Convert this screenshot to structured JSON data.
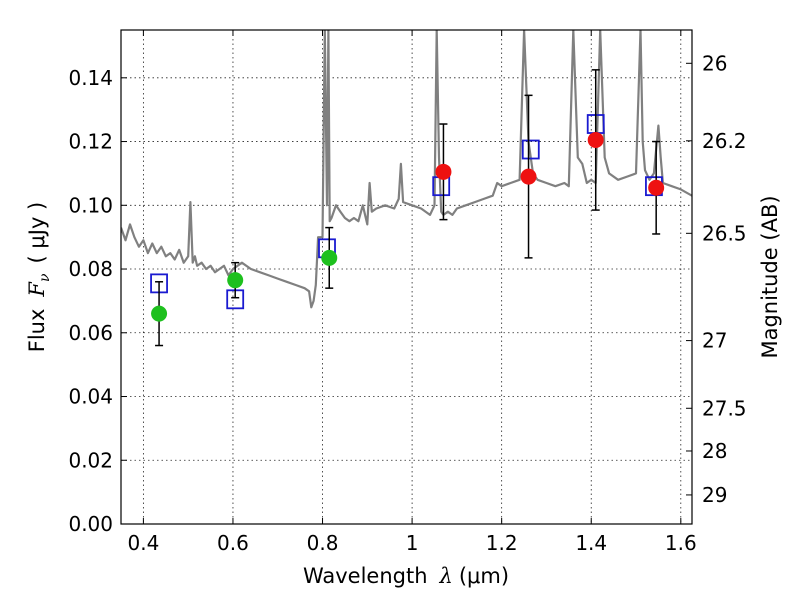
{
  "chart_data": {
    "type": "scatter",
    "xlabel": "Wavelength",
    "xlabel_symbol": "λ",
    "xlabel_unit": "(μm)",
    "ylabel": "Flux",
    "ylabel_symbol": "F",
    "ylabel_subscript": "ν",
    "ylabel_unit": "( μJy )",
    "y2label": "Magnitude (AB)",
    "xlim": [
      0.35,
      1.625
    ],
    "ylim": [
      0.0,
      0.155
    ],
    "grid": true,
    "x_ticks": [
      {
        "value": 0.4,
        "label": "0.4"
      },
      {
        "value": 0.6,
        "label": "0.6"
      },
      {
        "value": 0.8,
        "label": "0.8"
      },
      {
        "value": 1.0,
        "label": "1"
      },
      {
        "value": 1.2,
        "label": "1.2"
      },
      {
        "value": 1.4,
        "label": "1.4"
      },
      {
        "value": 1.6,
        "label": "1.6"
      }
    ],
    "y_ticks": [
      {
        "value": 0.0,
        "label": "0.00"
      },
      {
        "value": 0.02,
        "label": "0.02"
      },
      {
        "value": 0.04,
        "label": "0.04"
      },
      {
        "value": 0.06,
        "label": "0.06"
      },
      {
        "value": 0.08,
        "label": "0.08"
      },
      {
        "value": 0.1,
        "label": "0.10"
      },
      {
        "value": 0.12,
        "label": "0.12"
      },
      {
        "value": 0.14,
        "label": "0.14"
      }
    ],
    "y2_ticks": [
      {
        "value": 26,
        "label": "26"
      },
      {
        "value": 26.2,
        "label": "26.2"
      },
      {
        "value": 26.5,
        "label": "26.5"
      },
      {
        "value": 27,
        "label": "27"
      },
      {
        "value": 27.5,
        "label": "27.5"
      },
      {
        "value": 28,
        "label": "28"
      },
      {
        "value": 29,
        "label": "29"
      }
    ],
    "series": [
      {
        "kind": "line",
        "color": "#808080",
        "x": [
          0.35,
          0.36,
          0.37,
          0.38,
          0.39,
          0.4,
          0.41,
          0.42,
          0.43,
          0.44,
          0.45,
          0.46,
          0.47,
          0.48,
          0.49,
          0.5,
          0.505,
          0.51,
          0.515,
          0.52,
          0.53,
          0.54,
          0.55,
          0.56,
          0.57,
          0.58,
          0.59,
          0.6,
          0.62,
          0.64,
          0.66,
          0.68,
          0.7,
          0.72,
          0.74,
          0.76,
          0.77,
          0.775,
          0.78,
          0.785,
          0.79,
          0.8,
          0.805,
          0.81,
          0.813,
          0.816,
          0.82,
          0.83,
          0.84,
          0.85,
          0.86,
          0.87,
          0.88,
          0.89,
          0.9,
          0.905,
          0.91,
          0.92,
          0.94,
          0.96,
          0.97,
          0.975,
          0.98,
          1.0,
          1.02,
          1.04,
          1.05,
          1.055,
          1.06,
          1.065,
          1.07,
          1.08,
          1.09,
          1.1,
          1.12,
          1.14,
          1.16,
          1.18,
          1.19,
          1.2,
          1.22,
          1.24,
          1.25,
          1.26,
          1.27,
          1.28,
          1.3,
          1.32,
          1.34,
          1.35,
          1.36,
          1.37,
          1.38,
          1.39,
          1.4,
          1.41,
          1.42,
          1.43,
          1.44,
          1.46,
          1.48,
          1.5,
          1.51,
          1.515,
          1.52,
          1.53,
          1.54,
          1.55,
          1.555,
          1.56,
          1.58,
          1.6,
          1.625
        ],
        "y": [
          0.093,
          0.089,
          0.094,
          0.09,
          0.087,
          0.089,
          0.085,
          0.088,
          0.085,
          0.087,
          0.084,
          0.085,
          0.083,
          0.086,
          0.082,
          0.084,
          0.101,
          0.082,
          0.084,
          0.081,
          0.082,
          0.08,
          0.081,
          0.079,
          0.08,
          0.081,
          0.078,
          0.08,
          0.082,
          0.08,
          0.079,
          0.078,
          0.077,
          0.076,
          0.075,
          0.074,
          0.073,
          0.068,
          0.07,
          0.075,
          0.09,
          0.09,
          0.155,
          0.1,
          0.155,
          0.095,
          0.096,
          0.1,
          0.098,
          0.096,
          0.095,
          0.096,
          0.095,
          0.1,
          0.094,
          0.107,
          0.098,
          0.099,
          0.1,
          0.099,
          0.102,
          0.113,
          0.101,
          0.1,
          0.099,
          0.097,
          0.1,
          0.155,
          0.115,
          0.098,
          0.097,
          0.098,
          0.097,
          0.099,
          0.1,
          0.101,
          0.102,
          0.103,
          0.107,
          0.106,
          0.107,
          0.108,
          0.155,
          0.12,
          0.11,
          0.108,
          0.107,
          0.106,
          0.107,
          0.106,
          0.155,
          0.115,
          0.113,
          0.107,
          0.108,
          0.107,
          0.155,
          0.115,
          0.11,
          0.108,
          0.109,
          0.11,
          0.155,
          0.12,
          0.111,
          0.108,
          0.11,
          0.125,
          0.115,
          0.107,
          0.106,
          0.105,
          0.103
        ]
      },
      {
        "kind": "square",
        "color": "#1a1ad0",
        "x": [
          0.435,
          0.605,
          0.81,
          1.065,
          1.265,
          1.41,
          1.54
        ],
        "y": [
          0.0755,
          0.0705,
          0.0865,
          0.106,
          0.1175,
          0.1255,
          0.106
        ]
      },
      {
        "kind": "circle",
        "color": "#1ec01e",
        "x": [
          0.435,
          0.605,
          0.815
        ],
        "y": [
          0.066,
          0.0765,
          0.0835
        ],
        "err": [
          0.01,
          0.0055,
          0.0095
        ]
      },
      {
        "kind": "circle",
        "color": "#ee1111",
        "x": [
          1.07,
          1.26,
          1.41,
          1.545
        ],
        "y": [
          0.1105,
          0.109,
          0.1205,
          0.1055
        ],
        "err": [
          0.015,
          0.0255,
          0.022,
          0.0145
        ]
      }
    ]
  }
}
